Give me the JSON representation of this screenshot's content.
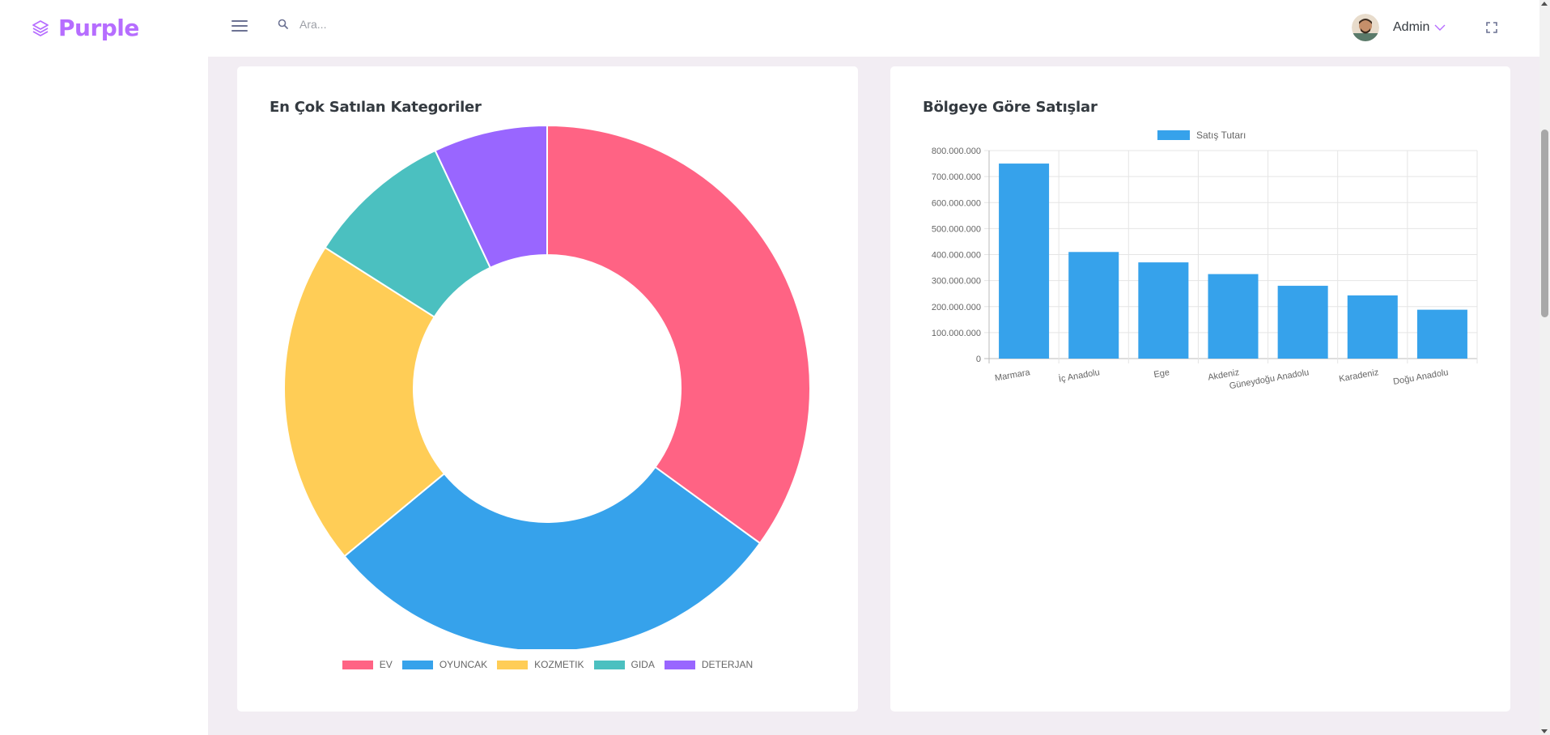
{
  "brand": {
    "name": "Purple",
    "icon": "layers-icon"
  },
  "search": {
    "placeholder": "Ara..."
  },
  "user": {
    "name": "Admin"
  },
  "colors": {
    "brand": "#b66dff",
    "pink": "#ff6384",
    "blue": "#36a2eb",
    "yellow": "#ffcd56",
    "teal": "#4bc0c0",
    "purple": "#9966ff"
  },
  "cards": {
    "left_title": "En Çok Satılan Kategoriler",
    "right_title": "Bölgeye Göre Satışlar"
  },
  "chart_data": [
    {
      "type": "pie",
      "title": "En Çok Satılan Kategoriler",
      "donut": true,
      "categories": [
        "EV",
        "OYUNCAK",
        "KOZMETIK",
        "GIDA",
        "DETERJAN"
      ],
      "values": [
        35,
        29,
        20,
        9,
        7
      ],
      "colors": [
        "#ff6384",
        "#36a2eb",
        "#ffcd56",
        "#4bc0c0",
        "#9966ff"
      ],
      "legend": "bottom"
    },
    {
      "type": "bar",
      "title": "Bölgeye Göre Satışlar",
      "categories": [
        "Marmara",
        "İç Anadolu",
        "Ege",
        "Akdeniz",
        "Güneydoğu Anadolu",
        "Karadeniz",
        "Doğu Anadolu"
      ],
      "series": [
        {
          "name": "Satış Tutarı",
          "values": [
            750000000,
            410000000,
            370000000,
            325000000,
            280000000,
            243000000,
            188000000
          ],
          "color": "#36a2eb"
        }
      ],
      "ylim": [
        0,
        800000000
      ],
      "yticks": [
        "0",
        "100.000.000",
        "200.000.000",
        "300.000.000",
        "400.000.000",
        "500.000.000",
        "600.000.000",
        "700.000.000",
        "800.000.000"
      ],
      "grid": true,
      "legend": "top"
    }
  ]
}
